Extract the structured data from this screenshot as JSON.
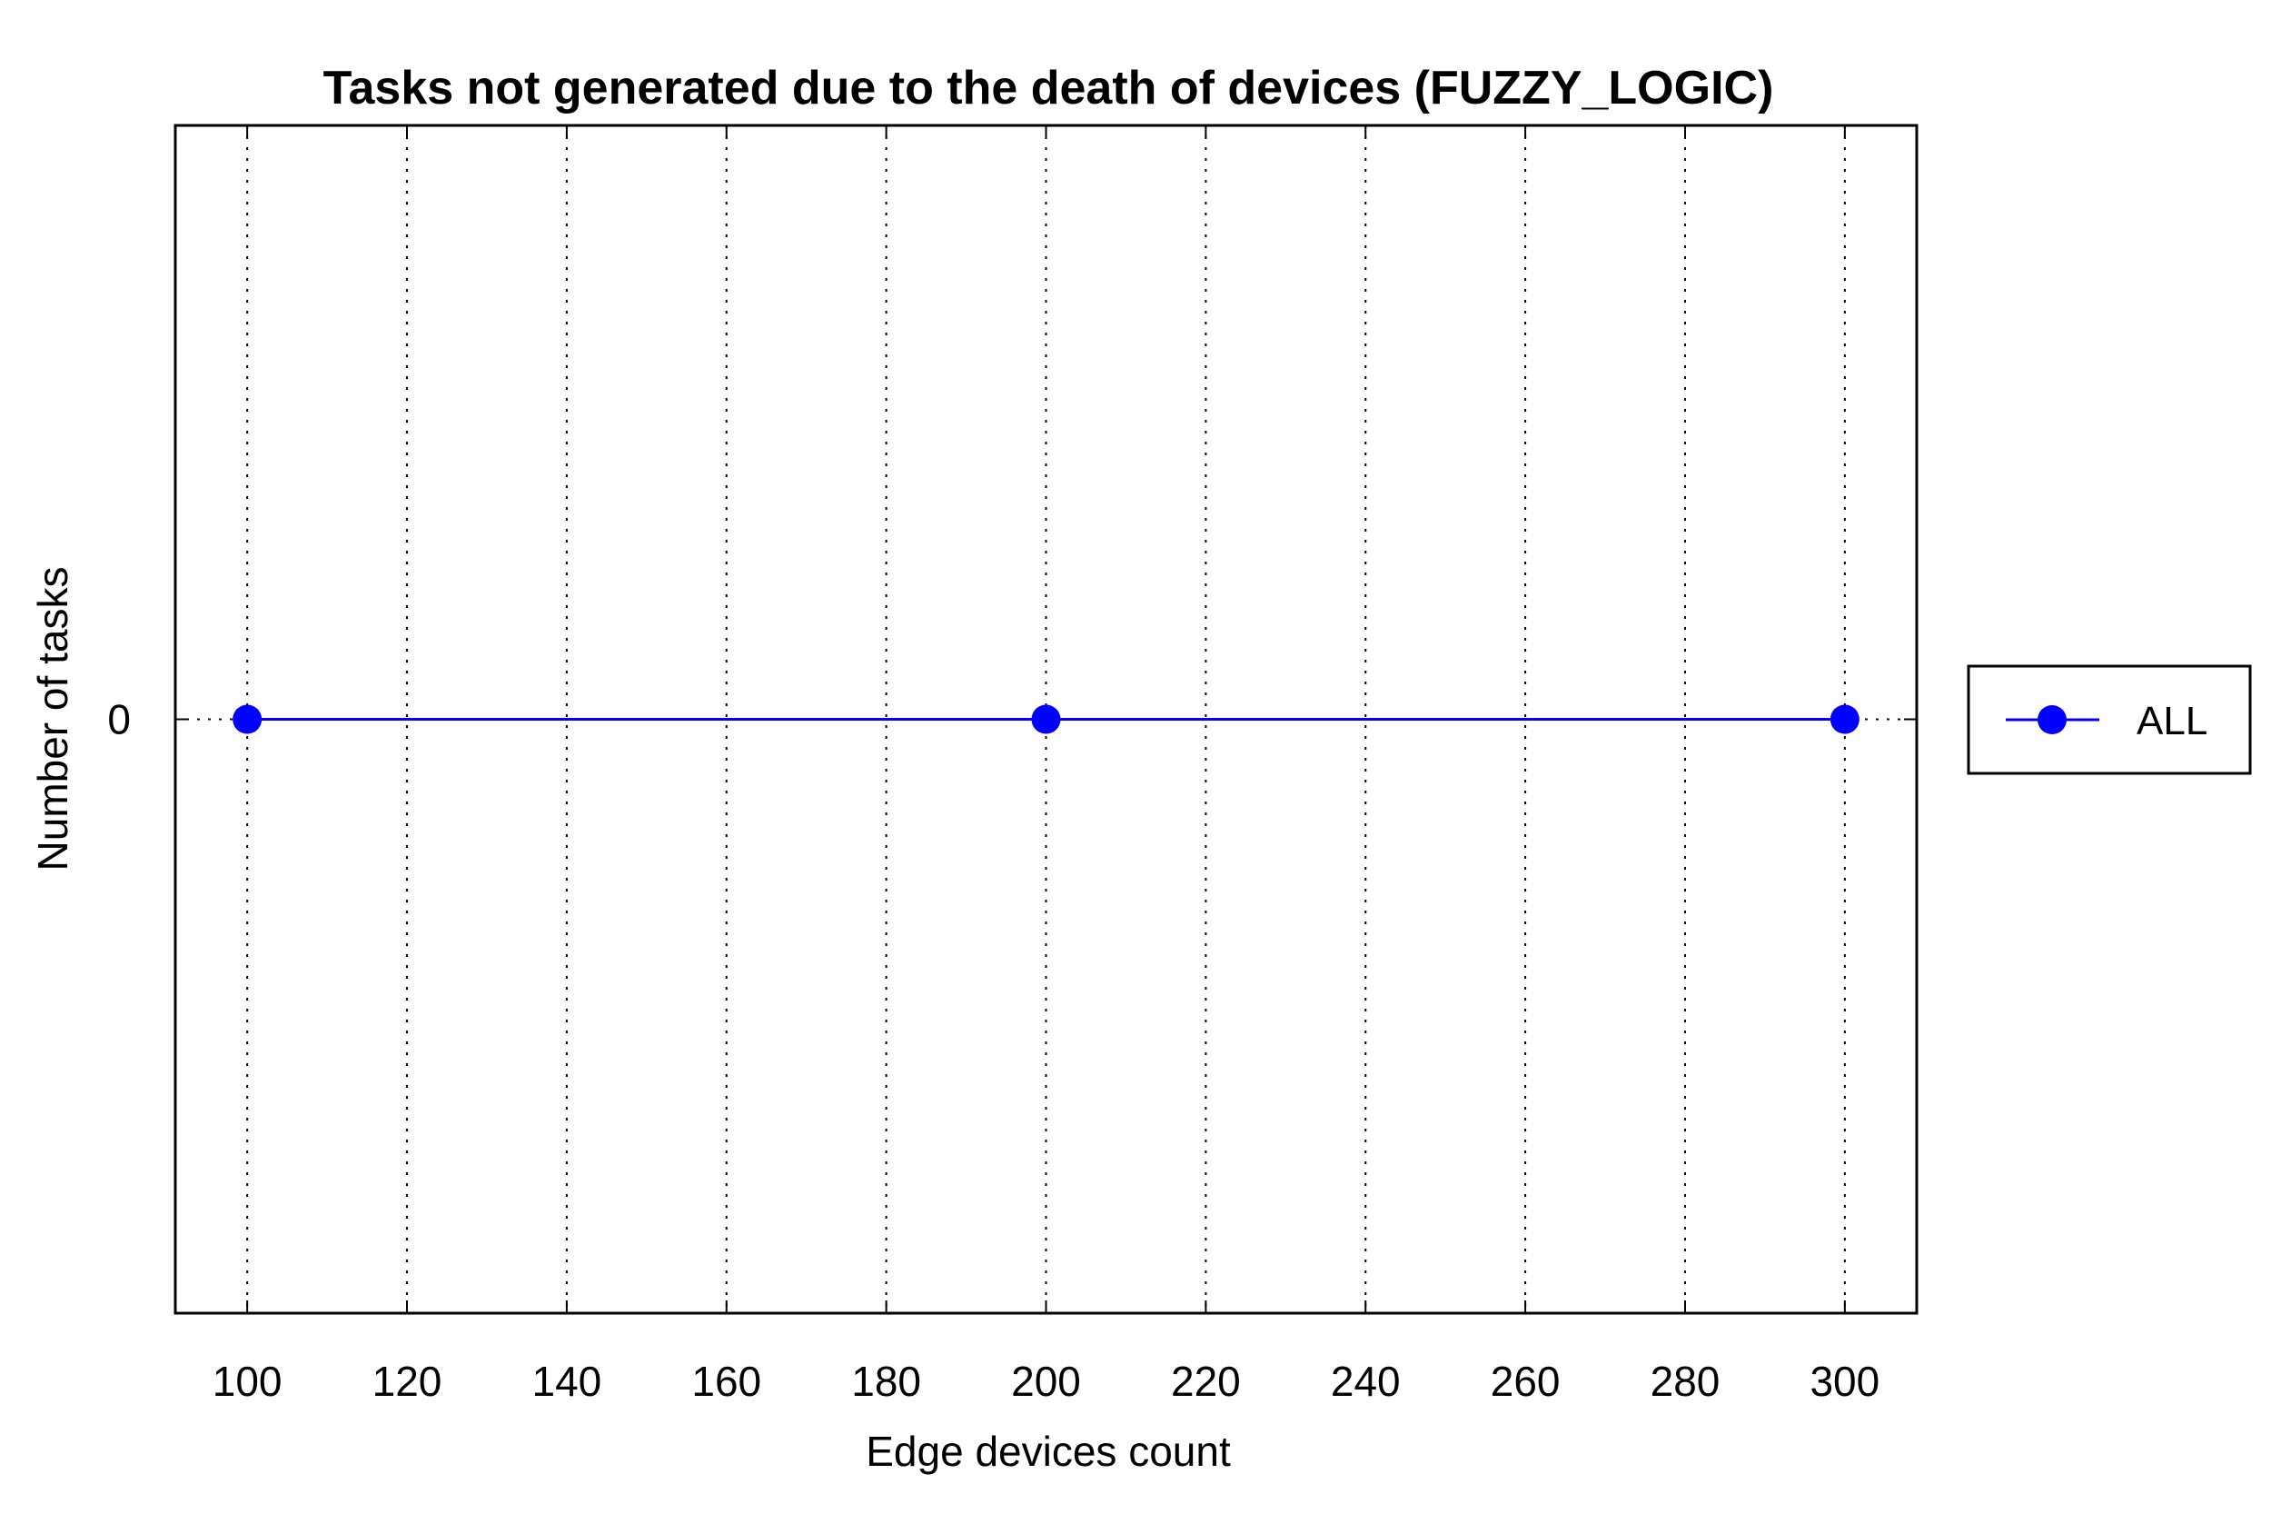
{
  "chart_data": {
    "type": "line",
    "title": "Tasks not generated due to the death of devices (FUZZY_LOGIC)",
    "xlabel": "Edge devices count",
    "ylabel": "Number of tasks",
    "xlim": [
      91,
      309
    ],
    "ylim": [
      -1,
      1
    ],
    "x_ticks": [
      100,
      120,
      140,
      160,
      180,
      200,
      220,
      240,
      260,
      280,
      300
    ],
    "x_tick_labels": [
      "100",
      "120",
      "140",
      "160",
      "180",
      "200",
      "220",
      "240",
      "260",
      "280",
      "300"
    ],
    "y_ticks": [
      0
    ],
    "y_tick_labels": [
      "0"
    ],
    "grid": "vertical dotted",
    "legend_position": "right-outside",
    "series": [
      {
        "name": "ALL",
        "color": "#0000ff",
        "marker": "circle",
        "x": [
          100,
          200,
          300
        ],
        "values": [
          0,
          0,
          0
        ]
      }
    ]
  }
}
